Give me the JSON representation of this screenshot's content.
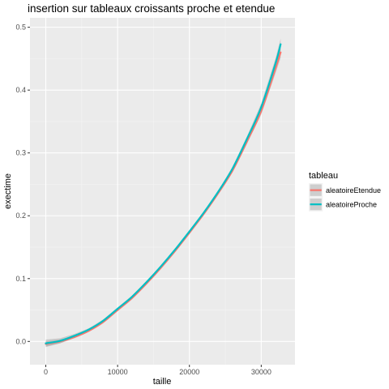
{
  "chart_data": {
    "type": "line",
    "title": "insertion sur tableaux croissants proche et etendue",
    "xlabel": "taille",
    "ylabel": "exectime",
    "xlim": [
      -2200,
      34700
    ],
    "ylim": [
      -0.037,
      0.515
    ],
    "x_ticks": [
      0,
      10000,
      20000,
      30000
    ],
    "x_tick_labels": [
      "0",
      "10000",
      "20000",
      "30000"
    ],
    "y_ticks": [
      0.0,
      0.1,
      0.2,
      0.3,
      0.4,
      0.5
    ],
    "y_tick_labels": [
      "0.0",
      "0.1",
      "0.2",
      "0.3",
      "0.4",
      "0.5"
    ],
    "grid": true,
    "legend": {
      "title": "tableau",
      "position": "right"
    },
    "smoothing_band": "confidence interval (grey)",
    "x": [
      0,
      2000,
      4000,
      6000,
      8000,
      10000,
      12000,
      14000,
      16000,
      18000,
      20000,
      22000,
      24000,
      26000,
      28000,
      30000,
      32000,
      32700
    ],
    "series": [
      {
        "name": "aleatoireEtendue",
        "color": "#F8766D",
        "values": [
          -0.004,
          0.0,
          0.007,
          0.017,
          0.031,
          0.05,
          0.069,
          0.092,
          0.117,
          0.144,
          0.173,
          0.203,
          0.236,
          0.272,
          0.318,
          0.367,
          0.435,
          0.46
        ],
        "band": [
          0.004,
          0.003,
          0.002,
          0.002,
          0.002,
          0.002,
          0.002,
          0.002,
          0.002,
          0.002,
          0.002,
          0.002,
          0.002,
          0.003,
          0.004,
          0.006,
          0.008,
          0.009
        ]
      },
      {
        "name": "aleatoireProche",
        "color": "#00BFC4",
        "values": [
          -0.003,
          0.001,
          0.009,
          0.019,
          0.033,
          0.052,
          0.071,
          0.094,
          0.119,
          0.146,
          0.175,
          0.205,
          0.238,
          0.275,
          0.322,
          0.373,
          0.443,
          0.473
        ],
        "band": [
          0.006,
          0.004,
          0.003,
          0.002,
          0.002,
          0.002,
          0.002,
          0.002,
          0.002,
          0.002,
          0.002,
          0.002,
          0.002,
          0.003,
          0.004,
          0.006,
          0.008,
          0.009
        ]
      }
    ]
  }
}
